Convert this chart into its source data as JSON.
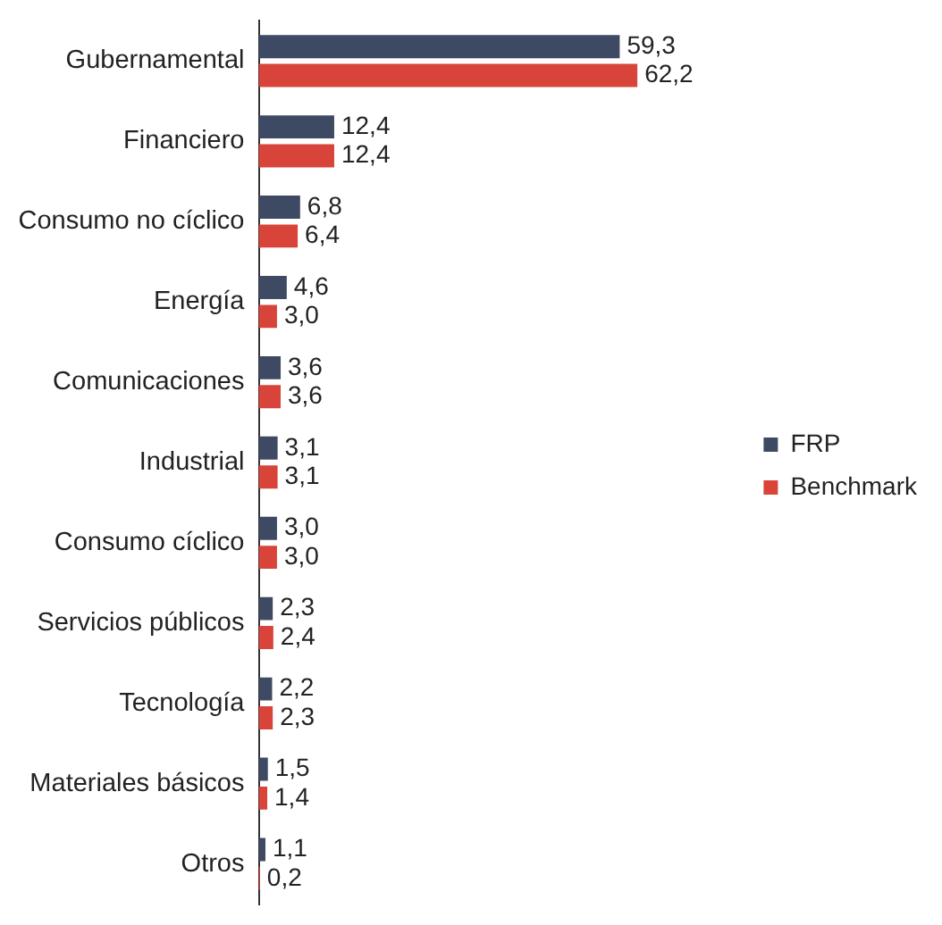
{
  "chart_data": {
    "type": "bar",
    "orientation": "horizontal",
    "categories": [
      "Gubernamental",
      "Financiero",
      "Consumo no cíclico",
      "Energía",
      "Comunicaciones",
      "Industrial",
      "Consumo cíclico",
      "Servicios públicos",
      "Tecnología",
      "Materiales básicos",
      "Otros"
    ],
    "series": [
      {
        "name": "FRP",
        "color": "#3e4a63",
        "values": [
          59.3,
          12.4,
          6.8,
          4.6,
          3.6,
          3.1,
          3.0,
          2.3,
          2.2,
          1.5,
          1.1
        ],
        "value_labels": [
          "59,3",
          "12,4",
          "6,8",
          "4,6",
          "3,6",
          "3,1",
          "3,0",
          "2,3",
          "2,2",
          "1,5",
          "1,1"
        ]
      },
      {
        "name": "Benchmark",
        "color": "#d8443a",
        "values": [
          62.2,
          12.4,
          6.4,
          3.0,
          3.6,
          3.1,
          3.0,
          2.4,
          2.3,
          1.4,
          0.2
        ],
        "value_labels": [
          "62,2",
          "12,4",
          "6,4",
          "3,0",
          "3,6",
          "3,1",
          "3,0",
          "2,4",
          "2,3",
          "1,4",
          "0,2"
        ]
      }
    ],
    "tick_labels": "y",
    "legend": "right"
  }
}
